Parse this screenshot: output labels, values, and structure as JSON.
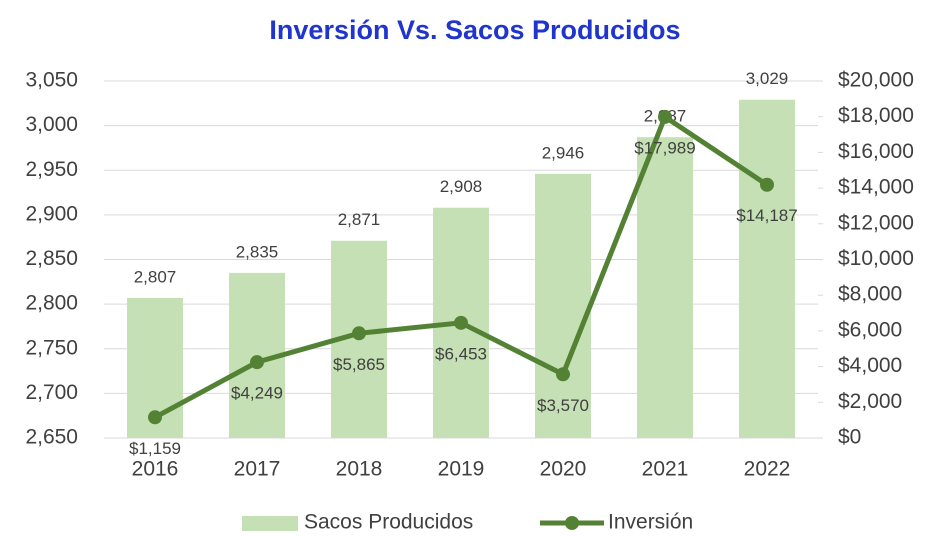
{
  "chart_data": {
    "type": "bar",
    "title": "Inversión Vs. Sacos Producidos",
    "categories": [
      "2016",
      "2017",
      "2018",
      "2019",
      "2020",
      "2021",
      "2022"
    ],
    "series": [
      {
        "name": "Sacos Producidos",
        "type": "bar",
        "color": "#c5e0b4",
        "values": [
          2807,
          2835,
          2871,
          2908,
          2946,
          2987,
          3029
        ],
        "value_labels": [
          "2,807",
          "2,835",
          "2,871",
          "2,908",
          "2,946",
          "2,987",
          "3,029"
        ]
      },
      {
        "name": "Inversión",
        "type": "line",
        "axis": "y2",
        "color": "#548235",
        "values": [
          1159,
          4249,
          5865,
          6453,
          3570,
          17989,
          14187
        ],
        "value_labels": [
          "$1,159",
          "$4,249",
          "$5,865",
          "$6,453",
          "$3,570",
          "$17,989",
          "$14,187"
        ]
      }
    ],
    "ylim": [
      2650,
      3050
    ],
    "yticks": [
      {
        "value": 2650,
        "label": "2,650"
      },
      {
        "value": 2700,
        "label": "2,700"
      },
      {
        "value": 2750,
        "label": "2,750"
      },
      {
        "value": 2800,
        "label": "2,800"
      },
      {
        "value": 2850,
        "label": "2,850"
      },
      {
        "value": 2900,
        "label": "2,900"
      },
      {
        "value": 2950,
        "label": "2,950"
      },
      {
        "value": 3000,
        "label": "3,000"
      },
      {
        "value": 3050,
        "label": "3,050"
      }
    ],
    "y2lim": [
      0,
      20000
    ],
    "y2ticks": [
      {
        "value": 0,
        "label": "$0"
      },
      {
        "value": 2000,
        "label": "$2,000"
      },
      {
        "value": 4000,
        "label": "$4,000"
      },
      {
        "value": 6000,
        "label": "$6,000"
      },
      {
        "value": 8000,
        "label": "$8,000"
      },
      {
        "value": 10000,
        "label": "$10,000"
      },
      {
        "value": 12000,
        "label": "$12,000"
      },
      {
        "value": 14000,
        "label": "$14,000"
      },
      {
        "value": 16000,
        "label": "$16,000"
      },
      {
        "value": 18000,
        "label": "$18,000"
      },
      {
        "value": 20000,
        "label": "$20,000"
      }
    ],
    "grid": true,
    "legend": "bottom"
  }
}
